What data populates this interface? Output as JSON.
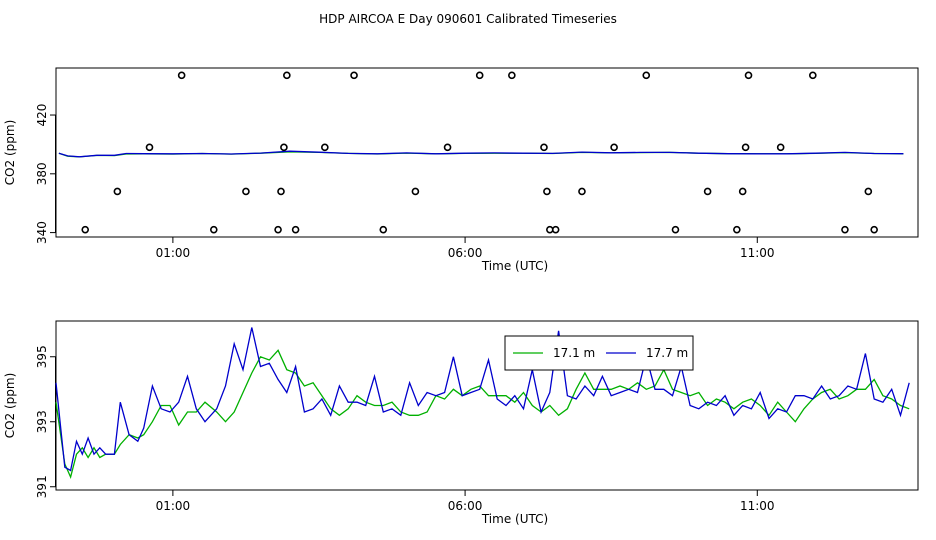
{
  "figure_title": "HDP AIRCOA E  Day 090601  Calibrated Timeseries",
  "chart_data": [
    {
      "type": "line",
      "ylabel": "CO2 (ppm)",
      "xlabel": "Time (UTC)",
      "xlim": [
        -1.0,
        13.75
      ],
      "ylim": [
        337,
        452
      ],
      "yticks": [
        340,
        380,
        420
      ],
      "xticks": [
        {
          "value": 1.0,
          "label": "01:00"
        },
        {
          "value": 6.0,
          "label": "06:00"
        },
        {
          "value": 11.0,
          "label": "11:00"
        }
      ],
      "lines": [
        {
          "name": "17.1 m",
          "color": "#00b000",
          "x": [
            -0.95,
            -0.8,
            -0.6,
            -0.3,
            0.0,
            0.2,
            0.5,
            1.0,
            1.5,
            2.0,
            2.5,
            3.0,
            3.5,
            4.0,
            4.5,
            5.0,
            5.5,
            6.0,
            6.5,
            7.0,
            7.5,
            8.0,
            8.5,
            9.0,
            9.5,
            10.0,
            10.5,
            11.0,
            11.5,
            12.0,
            12.5,
            13.0,
            13.5
          ],
          "y": [
            394.0,
            392.0,
            391.5,
            392.5,
            392.4,
            393.5,
            393.6,
            393.4,
            393.8,
            393.4,
            394.0,
            395.0,
            394.6,
            393.9,
            393.5,
            394.1,
            393.6,
            393.9,
            394.0,
            394.0,
            393.8,
            394.6,
            394.2,
            394.4,
            394.6,
            394.0,
            393.7,
            393.6,
            393.6,
            393.9,
            394.4,
            393.8,
            393.6
          ]
        },
        {
          "name": "17.7 m",
          "color": "#0000cc",
          "x": [
            -0.95,
            -0.8,
            -0.6,
            -0.3,
            0.0,
            0.2,
            0.5,
            1.0,
            1.5,
            2.0,
            2.5,
            3.0,
            3.5,
            4.0,
            4.5,
            5.0,
            5.5,
            6.0,
            6.5,
            7.0,
            7.5,
            8.0,
            8.5,
            9.0,
            9.5,
            10.0,
            10.5,
            11.0,
            11.5,
            12.0,
            12.5,
            13.0,
            13.5
          ],
          "y": [
            394.0,
            392.2,
            391.6,
            392.6,
            392.6,
            393.8,
            393.7,
            393.6,
            393.8,
            393.5,
            394.1,
            395.4,
            394.7,
            393.9,
            393.6,
            394.2,
            393.6,
            394.0,
            394.2,
            394.0,
            393.9,
            394.8,
            394.3,
            394.6,
            394.6,
            394.0,
            393.7,
            393.6,
            393.6,
            394.0,
            394.6,
            393.8,
            393.7
          ]
        }
      ],
      "points": {
        "x": [
          -0.5,
          0.05,
          0.6,
          1.15,
          1.7,
          2.25,
          2.8,
          2.85,
          2.9,
          2.95,
          3.1,
          3.6,
          4.1,
          4.6,
          5.15,
          5.7,
          6.25,
          6.8,
          7.35,
          7.4,
          7.45,
          7.55,
          8.0,
          8.55,
          9.1,
          9.6,
          10.15,
          10.65,
          10.75,
          10.8,
          10.85,
          11.4,
          11.95,
          12.5,
          12.9,
          13.0
        ],
        "y": [
          342,
          368,
          398,
          447,
          342,
          368,
          342,
          368,
          398,
          447,
          342,
          398,
          447,
          342,
          368,
          398,
          447,
          447,
          398,
          368,
          342,
          342,
          368,
          398,
          447,
          342,
          368,
          342,
          368,
          398,
          447,
          398,
          447,
          342,
          368,
          342
        ]
      }
    },
    {
      "type": "line",
      "ylabel": "CO2 (ppm)",
      "xlabel": "Time (UTC)",
      "xlim": [
        -1.0,
        13.75
      ],
      "ylim": [
        390.9,
        396.1
      ],
      "yticks": [
        391,
        393,
        395
      ],
      "xticks": [
        {
          "value": 1.0,
          "label": "01:00"
        },
        {
          "value": 6.0,
          "label": "06:00"
        },
        {
          "value": 11.0,
          "label": "11:00"
        }
      ],
      "legend": {
        "placement": "top-right",
        "entries": [
          {
            "name": "17.1 m",
            "color": "#00b000"
          },
          {
            "name": "17.7 m",
            "color": "#0000cc"
          }
        ]
      },
      "lines": [
        {
          "name": "17.1 m",
          "color": "#00b000",
          "x": [
            -1.0,
            -0.85,
            -0.75,
            -0.65,
            -0.55,
            -0.45,
            -0.35,
            -0.25,
            -0.15,
            0.0,
            0.1,
            0.25,
            0.4,
            0.5,
            0.65,
            0.8,
            0.95,
            1.1,
            1.25,
            1.4,
            1.55,
            1.75,
            1.9,
            2.05,
            2.2,
            2.35,
            2.5,
            2.65,
            2.8,
            2.95,
            3.1,
            3.25,
            3.4,
            3.55,
            3.7,
            3.85,
            4.0,
            4.15,
            4.3,
            4.45,
            4.6,
            4.75,
            4.9,
            5.05,
            5.2,
            5.35,
            5.5,
            5.65,
            5.8,
            5.95,
            6.1,
            6.25,
            6.4,
            6.55,
            6.7,
            6.85,
            7.0,
            7.15,
            7.3,
            7.45,
            7.6,
            7.75,
            7.9,
            8.05,
            8.2,
            8.35,
            8.5,
            8.65,
            8.8,
            8.95,
            9.1,
            9.25,
            9.4,
            9.55,
            9.7,
            9.85,
            10.0,
            10.15,
            10.3,
            10.45,
            10.6,
            10.75,
            10.9,
            11.05,
            11.2,
            11.35,
            11.5,
            11.65,
            11.8,
            11.95,
            12.1,
            12.25,
            12.4,
            12.55,
            12.7,
            12.85,
            13.0,
            13.15,
            13.3,
            13.45,
            13.6
          ],
          "y": [
            393.6,
            391.7,
            391.3,
            392.0,
            392.2,
            391.9,
            392.2,
            391.9,
            392.0,
            392.0,
            392.3,
            392.6,
            392.5,
            392.6,
            393.0,
            393.5,
            393.5,
            392.9,
            393.3,
            393.3,
            393.6,
            393.3,
            393.0,
            393.3,
            393.9,
            394.5,
            395.0,
            394.9,
            395.2,
            394.6,
            394.5,
            394.1,
            394.2,
            393.8,
            393.4,
            393.2,
            393.4,
            393.8,
            393.6,
            393.5,
            393.5,
            393.6,
            393.3,
            393.2,
            393.2,
            393.3,
            393.8,
            393.7,
            394.0,
            393.8,
            394.0,
            394.1,
            393.8,
            393.8,
            393.8,
            393.6,
            393.9,
            393.5,
            393.3,
            393.5,
            393.2,
            393.4,
            394.0,
            394.5,
            394.0,
            394.0,
            394.0,
            394.1,
            394.0,
            394.2,
            394.0,
            394.1,
            394.6,
            394.0,
            393.9,
            393.8,
            393.9,
            393.5,
            393.7,
            393.6,
            393.4,
            393.6,
            393.7,
            393.5,
            393.2,
            393.6,
            393.3,
            393.0,
            393.4,
            393.7,
            393.9,
            394.0,
            393.7,
            393.8,
            394.0,
            394.0,
            394.3,
            393.8,
            393.7,
            393.5,
            393.4
          ]
        },
        {
          "name": "17.7 m",
          "color": "#0000cc",
          "x": [
            -1.0,
            -0.85,
            -0.75,
            -0.65,
            -0.55,
            -0.45,
            -0.35,
            -0.25,
            -0.15,
            0.0,
            0.1,
            0.25,
            0.4,
            0.5,
            0.65,
            0.8,
            0.95,
            1.1,
            1.25,
            1.4,
            1.55,
            1.75,
            1.9,
            2.05,
            2.2,
            2.35,
            2.5,
            2.65,
            2.8,
            2.95,
            3.1,
            3.25,
            3.4,
            3.55,
            3.7,
            3.85,
            4.0,
            4.15,
            4.3,
            4.45,
            4.6,
            4.75,
            4.9,
            5.05,
            5.2,
            5.35,
            5.5,
            5.65,
            5.8,
            5.95,
            6.1,
            6.25,
            6.4,
            6.55,
            6.7,
            6.85,
            7.0,
            7.15,
            7.3,
            7.45,
            7.6,
            7.75,
            7.9,
            8.05,
            8.2,
            8.35,
            8.5,
            8.65,
            8.8,
            8.95,
            9.1,
            9.25,
            9.4,
            9.55,
            9.7,
            9.85,
            10.0,
            10.15,
            10.3,
            10.45,
            10.6,
            10.75,
            10.9,
            11.05,
            11.2,
            11.35,
            11.5,
            11.65,
            11.8,
            11.95,
            12.1,
            12.25,
            12.4,
            12.55,
            12.7,
            12.85,
            13.0,
            13.15,
            13.3,
            13.45,
            13.6
          ],
          "y": [
            394.2,
            391.6,
            391.5,
            392.4,
            392.0,
            392.5,
            392.0,
            392.2,
            392.0,
            392.0,
            393.6,
            392.6,
            392.4,
            392.8,
            394.1,
            393.4,
            393.3,
            393.6,
            394.4,
            393.4,
            393.0,
            393.4,
            394.1,
            395.4,
            394.6,
            395.9,
            394.7,
            394.8,
            394.3,
            393.9,
            394.7,
            393.3,
            393.4,
            393.7,
            393.2,
            394.1,
            393.6,
            393.6,
            393.5,
            394.4,
            393.3,
            393.4,
            393.2,
            394.2,
            393.5,
            393.9,
            393.8,
            393.9,
            395.0,
            393.8,
            393.9,
            394.0,
            394.9,
            393.7,
            393.5,
            393.8,
            393.4,
            394.6,
            393.3,
            393.9,
            395.8,
            393.8,
            393.7,
            394.1,
            393.8,
            394.4,
            393.8,
            393.9,
            394.0,
            393.9,
            395.0,
            394.0,
            394.0,
            393.8,
            394.7,
            393.5,
            393.4,
            393.6,
            393.5,
            393.8,
            393.2,
            393.5,
            393.4,
            393.9,
            393.1,
            393.4,
            393.3,
            393.8,
            393.8,
            393.7,
            394.1,
            393.7,
            393.8,
            394.1,
            394.0,
            395.1,
            393.7,
            393.6,
            394.0,
            393.2,
            394.2
          ]
        }
      ]
    }
  ]
}
